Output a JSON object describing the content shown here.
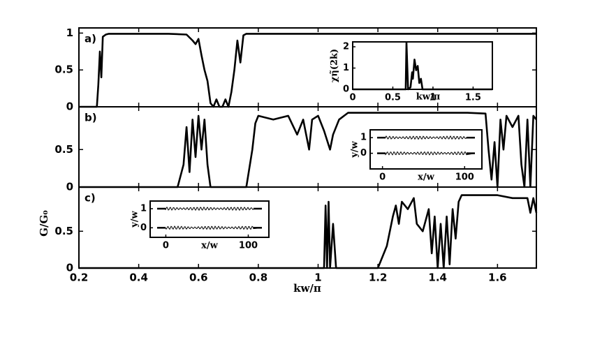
{
  "chart_data": {
    "type": "line",
    "x_label": "kw/π",
    "y_label": "G/G₀",
    "xlim": [
      0.2,
      1.73
    ],
    "xticks": [
      0.2,
      0.4,
      0.6,
      0.8,
      1,
      1.2,
      1.4,
      1.6
    ],
    "panels": [
      {
        "label": "a)",
        "ylim": [
          0,
          1.07
        ],
        "yticks": [
          0,
          0.5,
          1
        ],
        "x": [
          0.2,
          0.26,
          0.265,
          0.27,
          0.275,
          0.28,
          0.29,
          0.3,
          0.5,
          0.56,
          0.58,
          0.59,
          0.6,
          0.61,
          0.62,
          0.63,
          0.64,
          0.65,
          0.66,
          0.67,
          0.68,
          0.69,
          0.7,
          0.71,
          0.72,
          0.73,
          0.74,
          0.75,
          0.76,
          1.0,
          1.73
        ],
        "values": [
          0,
          0,
          0.3,
          0.75,
          0.4,
          0.95,
          0.98,
          0.99,
          0.99,
          0.98,
          0.9,
          0.85,
          0.92,
          0.7,
          0.5,
          0.35,
          0.05,
          0,
          0.1,
          0,
          0,
          0.1,
          0,
          0.2,
          0.5,
          0.9,
          0.6,
          0.97,
          0.99,
          0.99,
          0.99
        ],
        "inset": {
          "x_label": "kw/π",
          "y_label": "χη̃(2k)",
          "xlim": [
            0,
            1.74
          ],
          "ylim": [
            0,
            2.23
          ],
          "xticks": [
            0,
            0.5,
            1,
            1.5
          ],
          "yticks": [
            0,
            1,
            2
          ],
          "x": [
            0,
            0.6,
            0.66,
            0.67,
            0.69,
            0.72,
            0.74,
            0.75,
            0.77,
            0.79,
            0.81,
            0.83,
            0.85,
            0.87,
            1.74
          ],
          "values": [
            0,
            0,
            0,
            2.2,
            0,
            0.1,
            0.8,
            0.5,
            1.4,
            0.9,
            1.1,
            0.3,
            0.5,
            0,
            0
          ]
        }
      },
      {
        "label": "b)",
        "ylim": [
          0,
          1.07
        ],
        "yticks": [
          0,
          0.5
        ],
        "x": [
          0.2,
          0.53,
          0.55,
          0.56,
          0.57,
          0.58,
          0.59,
          0.6,
          0.61,
          0.62,
          0.63,
          0.64,
          0.76,
          0.78,
          0.79,
          0.8,
          0.85,
          0.9,
          0.93,
          0.95,
          0.97,
          0.98,
          1.0,
          1.02,
          1.04,
          1.05,
          1.07,
          1.1,
          1.5,
          1.56,
          1.57,
          1.58,
          1.59,
          1.6,
          1.61,
          1.62,
          1.63,
          1.65,
          1.67,
          1.68,
          1.69,
          1.7,
          1.71,
          1.72,
          1.73
        ],
        "values": [
          0,
          0,
          0.3,
          0.8,
          0.2,
          0.9,
          0.4,
          0.95,
          0.5,
          0.9,
          0.3,
          0,
          0,
          0.5,
          0.85,
          0.95,
          0.9,
          0.95,
          0.7,
          0.9,
          0.5,
          0.9,
          0.95,
          0.75,
          0.5,
          0.7,
          0.9,
          0.99,
          0.99,
          0.98,
          0.5,
          0.1,
          0.6,
          0,
          0.9,
          0.5,
          0.95,
          0.8,
          0.95,
          0.3,
          0,
          0.9,
          0,
          0.95,
          0.9
        ],
        "inset": {
          "x_label": "x/w",
          "y_label": "y/w",
          "xlim": [
            -15,
            121
          ],
          "ylim": [
            -1,
            1.5
          ],
          "xticks": [
            0,
            100
          ],
          "yticks": [
            0,
            1
          ]
        }
      },
      {
        "label": "c)",
        "ylim": [
          0,
          1.1
        ],
        "yticks": [
          0,
          0.5
        ],
        "x": [
          0.2,
          1.02,
          1.025,
          1.03,
          1.035,
          1.04,
          1.05,
          1.06,
          1.2,
          1.23,
          1.25,
          1.26,
          1.27,
          1.28,
          1.3,
          1.32,
          1.33,
          1.35,
          1.37,
          1.38,
          1.39,
          1.4,
          1.41,
          1.42,
          1.43,
          1.44,
          1.45,
          1.46,
          1.47,
          1.48,
          1.6,
          1.65,
          1.7,
          1.71,
          1.72,
          1.73
        ],
        "values": [
          0,
          0,
          0.85,
          0,
          0.9,
          0,
          0.6,
          0,
          0,
          0.3,
          0.7,
          0.85,
          0.6,
          0.9,
          0.8,
          0.95,
          0.6,
          0.5,
          0.8,
          0.2,
          0.7,
          0,
          0.6,
          0,
          0.7,
          0.05,
          0.8,
          0.4,
          0.9,
          0.99,
          0.99,
          0.95,
          0.95,
          0.75,
          0.95,
          0.75
        ],
        "inset": {
          "x_label": "x/w",
          "y_label": "y/w",
          "xlim": [
            -19,
            125
          ],
          "ylim": [
            -0.5,
            1.4
          ],
          "xticks": [
            0,
            100
          ],
          "yticks": [
            0,
            1
          ]
        }
      }
    ]
  }
}
